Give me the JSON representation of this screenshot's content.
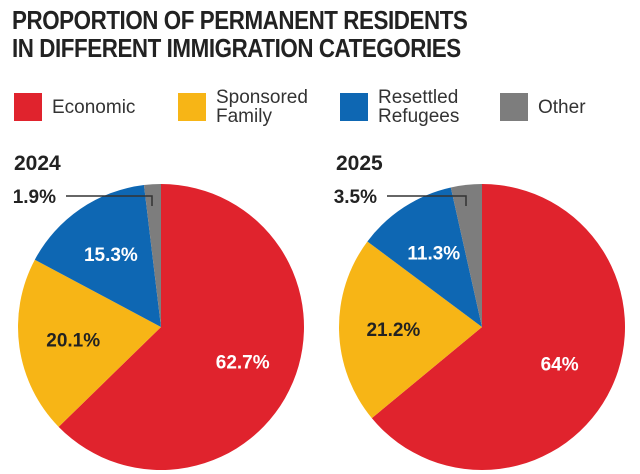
{
  "title_line1": "PROPORTION OF PERMANENT RESIDENTS",
  "title_line2": "IN DIFFERENT IMMIGRATION CATEGORIES",
  "legend": [
    {
      "label": "Economic",
      "color": "#e0232d"
    },
    {
      "label": "Sponsored Family",
      "color": "#f7b516"
    },
    {
      "label": "Resettled Refugees",
      "color": "#0e67b3"
    },
    {
      "label": "Other",
      "color": "#7d7d7d"
    }
  ],
  "chart_data": [
    {
      "type": "pie",
      "title": "2024",
      "categories": [
        "Economic",
        "Sponsored Family",
        "Resettled Refugees",
        "Other"
      ],
      "values": [
        62.7,
        20.1,
        15.3,
        1.9
      ],
      "labels": [
        "62.7%",
        "20.1%",
        "15.3%",
        "1.9%"
      ],
      "colors": [
        "#e0232d",
        "#f7b516",
        "#0e67b3",
        "#7d7d7d"
      ]
    },
    {
      "type": "pie",
      "title": "2025",
      "categories": [
        "Economic",
        "Sponsored Family",
        "Resettled Refugees",
        "Other"
      ],
      "values": [
        64,
        21.2,
        11.3,
        3.5
      ],
      "labels": [
        "64%",
        "21.2%",
        "11.3%",
        "3.5%"
      ],
      "colors": [
        "#e0232d",
        "#f7b516",
        "#0e67b3",
        "#7d7d7d"
      ]
    }
  ]
}
